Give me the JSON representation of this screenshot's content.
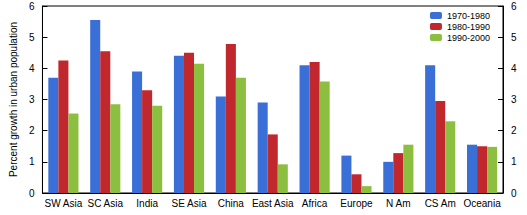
{
  "chart_data": {
    "type": "bar",
    "y_label": "Percent growth in urban population",
    "categories": [
      "SW Asia",
      "SC Asia",
      "India",
      "SE Asia",
      "China",
      "East Asia",
      "Africa",
      "Europe",
      "N Am",
      "CS Am",
      "Oceania"
    ],
    "series": [
      {
        "name": "1970-1980",
        "color": "#3a6fd8",
        "values": [
          3.7,
          5.55,
          3.9,
          4.4,
          3.1,
          2.9,
          4.1,
          1.2,
          1.0,
          4.1,
          1.55
        ]
      },
      {
        "name": "1980-1990",
        "color": "#c0282d",
        "values": [
          4.25,
          4.55,
          3.3,
          4.5,
          4.78,
          1.88,
          4.2,
          0.6,
          1.28,
          2.95,
          1.5
        ]
      },
      {
        "name": "1990-2000",
        "color": "#8cbf3f",
        "values": [
          2.55,
          2.85,
          2.8,
          4.15,
          3.7,
          0.92,
          3.58,
          0.22,
          1.55,
          2.3,
          1.48
        ]
      }
    ],
    "ylim": [
      0,
      6
    ],
    "yticks": [
      0,
      1,
      2,
      3,
      4,
      5,
      6
    ],
    "y2lim": [
      0,
      6
    ],
    "y2ticks": [
      0,
      1,
      2,
      3,
      4,
      5,
      6
    ],
    "grid": false,
    "legend": "upper right"
  }
}
